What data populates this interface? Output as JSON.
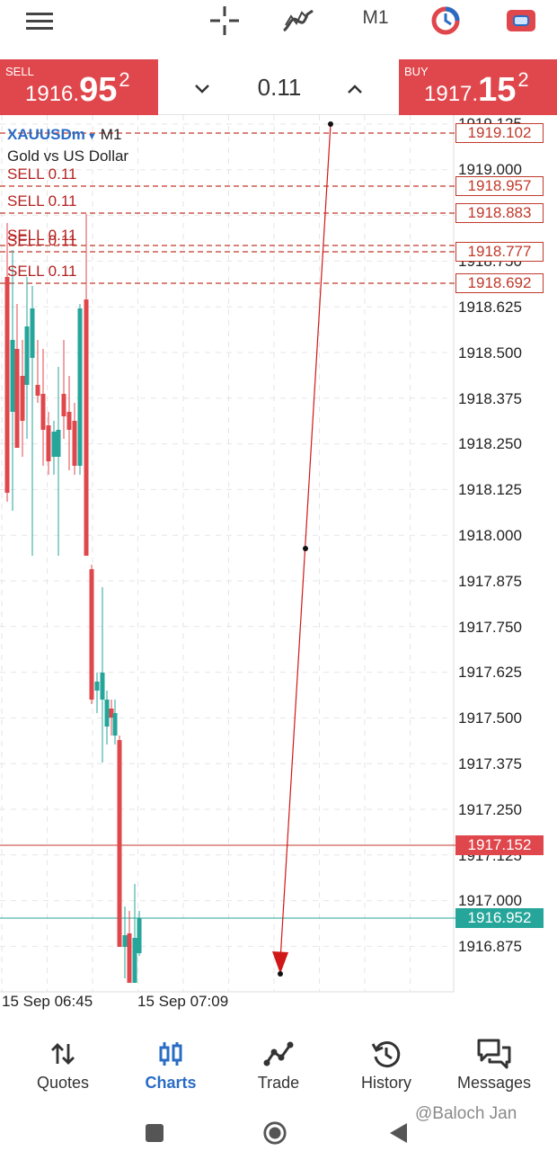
{
  "toolbar": {
    "timeframe": "M1",
    "icons": [
      "menu-icon",
      "crosshair-icon",
      "indicator-icon",
      "timeframe",
      "objects-icon",
      "account-icon"
    ]
  },
  "trade": {
    "sell": {
      "tag": "SELL",
      "price_main": "1916.",
      "price_big": "95",
      "price_sup": "2"
    },
    "buy": {
      "tag": "BUY",
      "price_main": "1917.",
      "price_big": "15",
      "price_sup": "2"
    },
    "lot": "0.11"
  },
  "chart": {
    "symbol": "XAUUSDm",
    "timeframe": "M1",
    "description": "Gold vs US Dollar",
    "order_labels": [
      "SELL 0.11",
      "SELL 0.11",
      "SELL 0.11",
      "SELL 0.11",
      "SELL 0.11"
    ],
    "order_prices": [
      "1919.102",
      "1918.957",
      "1918.883",
      "1918.777",
      "1918.692"
    ],
    "y_ticks": [
      "1919.125",
      "1919.000",
      "1918.750",
      "1918.625",
      "1918.500",
      "1918.375",
      "1918.250",
      "1918.125",
      "1918.000",
      "1917.875",
      "1917.750",
      "1917.625",
      "1917.500",
      "1917.375",
      "1917.250",
      "1917.125",
      "1917.000",
      "1916.875"
    ],
    "ask_price": "1917.152",
    "bid_price": "1916.952",
    "x_ticks": [
      "15 Sep 06:45",
      "15 Sep 07:09"
    ],
    "colors": {
      "bull": "#26a69a",
      "bear": "#e0474c",
      "ask_line": "#c0392b",
      "bid_line": "#26a69a",
      "order_line": "#c0392b"
    }
  },
  "nav": {
    "items": [
      {
        "label": "Quotes",
        "icon": "quotes-icon"
      },
      {
        "label": "Charts",
        "icon": "charts-icon"
      },
      {
        "label": "Trade",
        "icon": "trade-icon"
      },
      {
        "label": "History",
        "icon": "history-icon"
      },
      {
        "label": "Messages",
        "icon": "messages-icon"
      }
    ],
    "active": "Charts"
  },
  "system": {
    "watermark": "@Baloch Jan"
  }
}
